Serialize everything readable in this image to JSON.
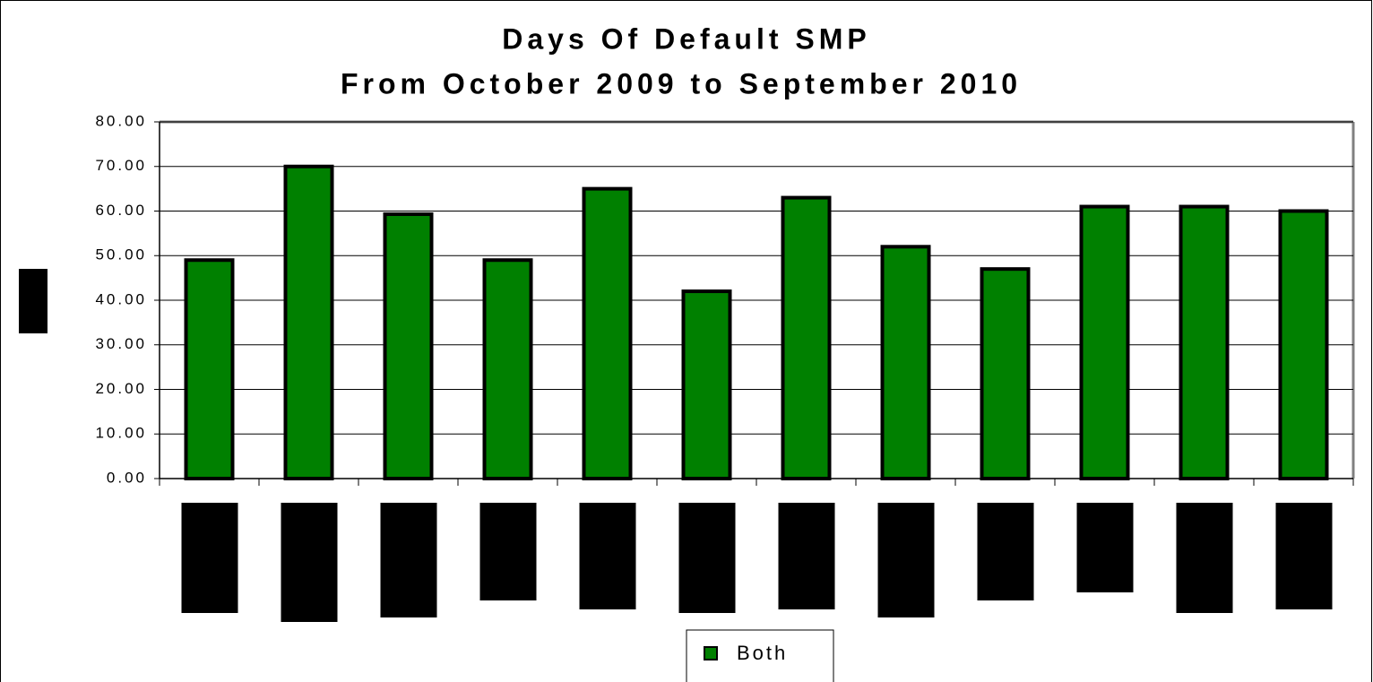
{
  "chart_data": {
    "type": "bar",
    "title": "Days Of Default SMP",
    "subtitle": "From October 2009 to September 2010",
    "categories": [
      null,
      null,
      null,
      null,
      null,
      null,
      null,
      null,
      null,
      null,
      null,
      null
    ],
    "series": [
      {
        "name": "Both",
        "color": "#008000",
        "values": [
          49,
          70,
          59.3,
          49,
          65,
          42,
          63,
          52,
          47,
          61,
          61,
          60
        ]
      }
    ],
    "ylim": [
      0,
      80
    ],
    "yticks": [
      {
        "value": 0,
        "label": "0.00"
      },
      {
        "value": 10,
        "label": "10.00"
      },
      {
        "value": 20,
        "label": "20.00"
      },
      {
        "value": 30,
        "label": "30.00"
      },
      {
        "value": 40,
        "label": "40.00"
      },
      {
        "value": 50,
        "label": "50.00"
      },
      {
        "value": 60,
        "label": "60.00"
      },
      {
        "value": 70,
        "label": "70.00"
      },
      {
        "value": 80,
        "label": "80.00"
      }
    ],
    "grid": true
  }
}
